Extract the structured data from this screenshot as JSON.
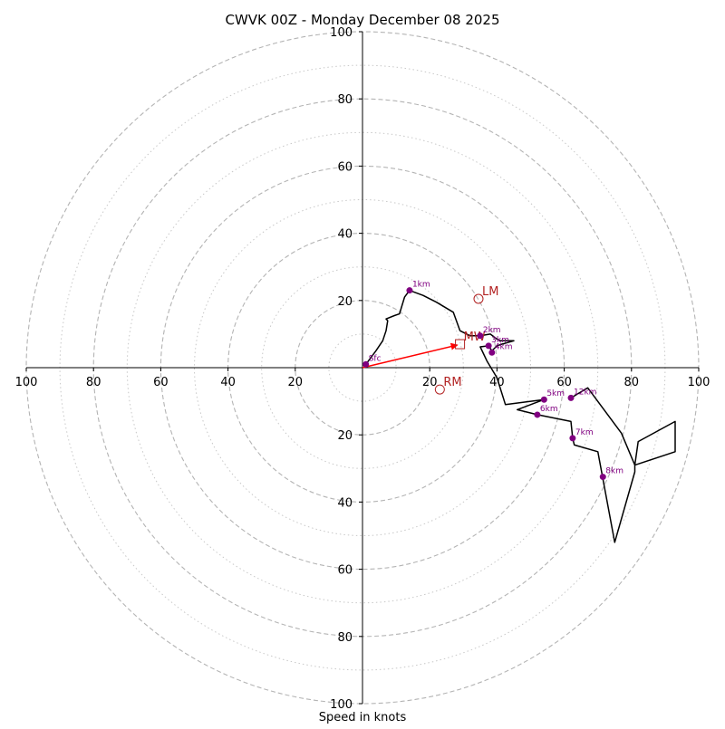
{
  "chart_data": {
    "type": "hodograph",
    "title": "CWVK 00Z - Monday December 08 2025",
    "xlabel": "Speed in knots",
    "units": "knots",
    "range": [
      -100,
      100
    ],
    "ring_step": 20,
    "minor_ring_step": 10,
    "x_ticks": [
      {
        "value": -100,
        "label": "100"
      },
      {
        "value": -80,
        "label": "80"
      },
      {
        "value": -60,
        "label": "60"
      },
      {
        "value": -40,
        "label": "40"
      },
      {
        "value": -20,
        "label": "20"
      },
      {
        "value": 20,
        "label": "20"
      },
      {
        "value": 40,
        "label": "40"
      },
      {
        "value": 60,
        "label": "60"
      },
      {
        "value": 80,
        "label": "80"
      },
      {
        "value": 100,
        "label": "100"
      }
    ],
    "y_ticks": [
      {
        "value": 100,
        "label": "100"
      },
      {
        "value": 80,
        "label": "80"
      },
      {
        "value": 60,
        "label": "60"
      },
      {
        "value": 40,
        "label": "40"
      },
      {
        "value": 20,
        "label": "20"
      },
      {
        "value": -20,
        "label": "20"
      },
      {
        "value": -40,
        "label": "40"
      },
      {
        "value": -60,
        "label": "60"
      },
      {
        "value": -80,
        "label": "80"
      },
      {
        "value": -100,
        "label": "100"
      }
    ],
    "trace_color": "#000000",
    "height_marker_color": "#800080",
    "motion_color": "#b22222",
    "mean_wind_color": "#ff0000",
    "trace": [
      [
        1,
        1
      ],
      [
        4,
        5
      ],
      [
        6,
        8
      ],
      [
        7,
        11
      ],
      [
        7.5,
        14
      ],
      [
        7,
        14.5
      ],
      [
        9.5,
        15.5
      ],
      [
        11,
        16
      ],
      [
        12.5,
        21
      ],
      [
        14,
        23
      ],
      [
        18,
        21.5
      ],
      [
        22,
        19.5
      ],
      [
        27,
        16.5
      ],
      [
        29,
        11
      ],
      [
        32,
        9.5
      ],
      [
        35,
        9.5
      ],
      [
        38,
        10
      ],
      [
        40,
        8.5
      ],
      [
        41,
        8
      ],
      [
        45,
        8
      ],
      [
        41.5,
        7
      ],
      [
        40,
        6.5
      ],
      [
        38.5,
        5
      ],
      [
        37.5,
        6.5
      ],
      [
        35,
        6.2
      ],
      [
        37,
        2
      ],
      [
        40,
        -3
      ],
      [
        42.5,
        -11
      ],
      [
        54,
        -9.5
      ],
      [
        46,
        -12.5
      ],
      [
        52,
        -14
      ],
      [
        62,
        -16
      ],
      [
        62.5,
        -21
      ],
      [
        63,
        -23
      ],
      [
        70,
        -25
      ],
      [
        75,
        -52
      ],
      [
        81,
        -31
      ],
      [
        81,
        -29
      ],
      [
        82,
        -22
      ],
      [
        93,
        -16
      ],
      [
        93,
        -25
      ],
      [
        81,
        -29
      ],
      [
        77,
        -19.5
      ],
      [
        67,
        -6
      ],
      [
        62,
        -9
      ]
    ],
    "height_markers": [
      {
        "label": "Sfc",
        "u": 1,
        "v": 1
      },
      {
        "label": "1km",
        "u": 14,
        "v": 23
      },
      {
        "label": "2km",
        "u": 35,
        "v": 9.5
      },
      {
        "label": "3km",
        "u": 37.5,
        "v": 6.5
      },
      {
        "label": "4km",
        "u": 38.5,
        "v": 4.5
      },
      {
        "label": "5km",
        "u": 54,
        "v": -9.5
      },
      {
        "label": "6km",
        "u": 52,
        "v": -14
      },
      {
        "label": "7km",
        "u": 62.5,
        "v": -21
      },
      {
        "label": "8km",
        "u": 71.5,
        "v": -32.5
      },
      {
        "label": "12km",
        "u": 62,
        "v": -9
      }
    ],
    "storm_motions": [
      {
        "label": "LM",
        "u": 34.5,
        "v": 20.5,
        "marker": "circle"
      },
      {
        "label": "RM",
        "u": 23,
        "v": -6.5,
        "marker": "circle"
      },
      {
        "label": "MW",
        "u": 29,
        "v": 7,
        "marker": "square"
      }
    ],
    "mean_wind_vector": {
      "from": [
        0,
        0
      ],
      "to": [
        29,
        7
      ]
    }
  }
}
